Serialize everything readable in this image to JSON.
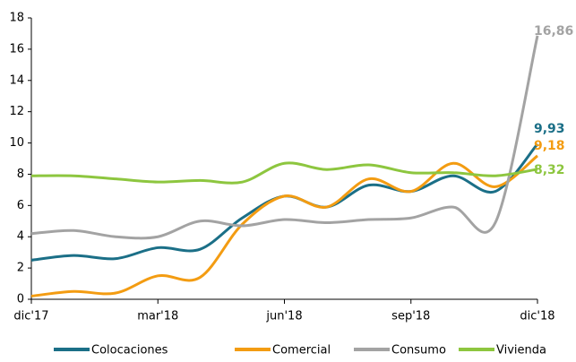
{
  "chart_data": {
    "type": "line",
    "categories": [
      "dic'17",
      null,
      null,
      "mar'18",
      null,
      null,
      "jun'18",
      null,
      null,
      "sep'18",
      null,
      null,
      "dic'18"
    ],
    "series": [
      {
        "name": "Colocaciones",
        "color": "#1b6f87",
        "values": [
          2.5,
          2.8,
          2.6,
          3.3,
          3.2,
          5.2,
          6.6,
          5.9,
          7.3,
          6.9,
          7.9,
          6.9,
          9.93
        ],
        "value_labels": [
          null,
          null,
          null,
          null,
          null,
          null,
          null,
          null,
          null,
          null,
          null,
          null,
          "9,93"
        ]
      },
      {
        "name": "Comercial",
        "color": "#f39c12",
        "values": [
          0.2,
          0.5,
          0.4,
          1.5,
          1.4,
          4.8,
          6.6,
          5.9,
          7.7,
          6.9,
          8.7,
          7.2,
          9.18
        ],
        "value_labels": [
          null,
          null,
          null,
          null,
          null,
          null,
          null,
          null,
          null,
          null,
          null,
          null,
          "9,18"
        ]
      },
      {
        "name": "Consumo",
        "color": "#a3a3a3",
        "values": [
          4.2,
          4.4,
          4.0,
          4.0,
          5.0,
          4.7,
          5.1,
          4.9,
          5.1,
          5.2,
          5.9,
          4.9,
          16.86
        ],
        "value_labels": [
          null,
          null,
          null,
          null,
          null,
          null,
          null,
          null,
          null,
          null,
          null,
          null,
          "16,86"
        ]
      },
      {
        "name": "Vivienda",
        "color": "#8dc63f",
        "values": [
          7.9,
          7.9,
          7.7,
          7.5,
          7.6,
          7.5,
          8.7,
          8.3,
          8.6,
          8.1,
          8.1,
          7.9,
          8.32
        ],
        "value_labels": [
          null,
          null,
          null,
          null,
          null,
          null,
          null,
          null,
          null,
          null,
          null,
          null,
          "8,32"
        ]
      }
    ],
    "ylim": [
      0,
      18
    ],
    "yticks": [
      0,
      2,
      4,
      6,
      8,
      10,
      12,
      14,
      16,
      18
    ],
    "grid": false
  }
}
